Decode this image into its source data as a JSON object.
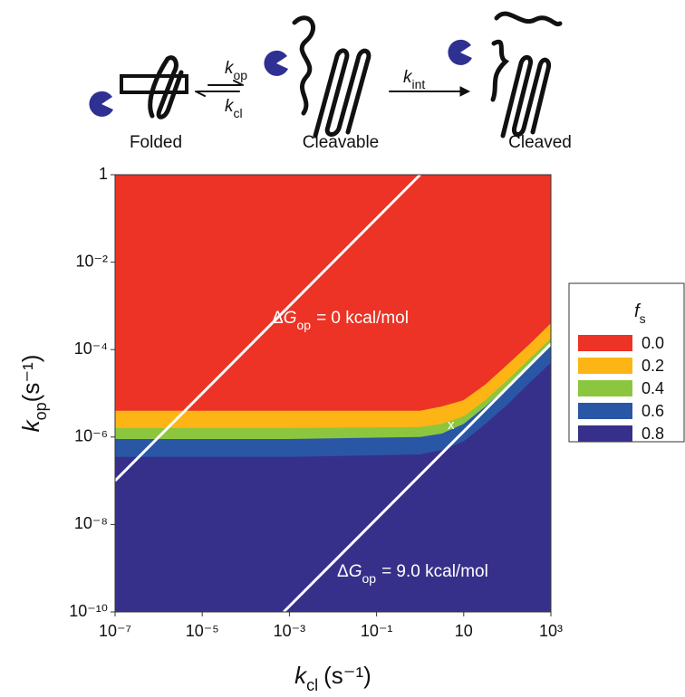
{
  "scheme": {
    "states": [
      "Folded",
      "Cleavable",
      "Cleaved"
    ],
    "rates": [
      {
        "symbol": "k",
        "subscript": "op"
      },
      {
        "symbol": "k",
        "subscript": "cl"
      },
      {
        "symbol": "k",
        "subscript": "int"
      }
    ]
  },
  "chart_data": {
    "type": "contour",
    "x_label": {
      "symbol": "k",
      "subscript": "cl",
      "unit": "(s⁻¹)"
    },
    "y_label": {
      "symbol": "k",
      "subscript": "op",
      "unit": "(s⁻¹)"
    },
    "xscale": "log",
    "yscale": "log",
    "xlim": [
      1e-07,
      1000
    ],
    "ylim": [
      1e-10,
      1
    ],
    "xticks": [
      {
        "value": 1e-07,
        "label": "10⁻⁷"
      },
      {
        "value": 1e-05,
        "label": "10⁻⁵"
      },
      {
        "value": 0.001,
        "label": "10⁻³"
      },
      {
        "value": 0.1,
        "label": "10⁻¹"
      },
      10,
      {
        "value": 1000,
        "label": "10³"
      }
    ],
    "yticks": [
      1,
      {
        "value": 0.01,
        "label": "10⁻²"
      },
      {
        "value": 0.0001,
        "label": "10⁻⁴"
      },
      {
        "value": 1e-06,
        "label": "10⁻⁶"
      },
      {
        "value": 1e-08,
        "label": "10⁻⁸"
      },
      {
        "value": 1e-10,
        "label": "10⁻¹⁰"
      }
    ],
    "levels": [
      {
        "value": 0,
        "label": "0.0"
      },
      0.2,
      0.4,
      0.6,
      0.8
    ],
    "level_colors": [
      "#ec3325",
      "#fdb515",
      "#8cc63f",
      "#2a56a6",
      "#37308a"
    ],
    "contours": [
      {
        "level": 0.2,
        "x": [
          1e-07,
          0.001,
          1,
          3.16,
          10,
          31.6,
          100,
          316,
          1000
        ],
        "values": [
          4e-06,
          4e-06,
          4e-06,
          5e-06,
          7e-06,
          1.6e-05,
          4.5e-05,
          0.00013,
          0.0004
        ]
      },
      {
        "level": 0.4,
        "x": [
          1e-07,
          0.001,
          1,
          3.16,
          10,
          31.6,
          100,
          316,
          1000
        ],
        "values": [
          1.6e-06,
          1.6e-06,
          1.7e-06,
          2e-06,
          3e-06,
          7e-06,
          2e-05,
          6e-05,
          0.00018
        ]
      },
      {
        "level": 0.6,
        "x": [
          1e-07,
          0.001,
          1,
          3.16,
          10,
          31.6,
          100,
          316,
          1000
        ],
        "values": [
          9e-07,
          9e-07,
          1e-06,
          1.2e-06,
          2e-06,
          5e-06,
          1.4e-05,
          4e-05,
          0.00012
        ]
      },
      {
        "level": 0.8,
        "x": [
          1e-07,
          0.001,
          1,
          3.16,
          10,
          31.6,
          100,
          316,
          1000
        ],
        "values": [
          3.5e-07,
          3.5e-07,
          4e-07,
          5e-07,
          8e-07,
          2e-06,
          5.5e-06,
          1.7e-05,
          5e-05
        ]
      }
    ],
    "lines": [
      {
        "x": [
          1e-07,
          1
        ],
        "values": [
          1e-07,
          1
        ]
      },
      {
        "x": [
          0.00074,
          1000
        ],
        "values": [
          1e-10,
          0.000135
        ]
      }
    ],
    "annotations": [
      {
        "delta": "Δ",
        "symbol": "G",
        "subscript": "op",
        "text": "= 0 kcal/mol"
      },
      {
        "delta": "Δ",
        "symbol": "G",
        "subscript": "op",
        "text": "= 9.0 kcal/mol"
      }
    ],
    "marker": {
      "label": "x",
      "x": 5.1,
      "y": 1.85e-06
    },
    "legend": {
      "title": {
        "symbol": "f",
        "subscript": "s"
      }
    }
  }
}
